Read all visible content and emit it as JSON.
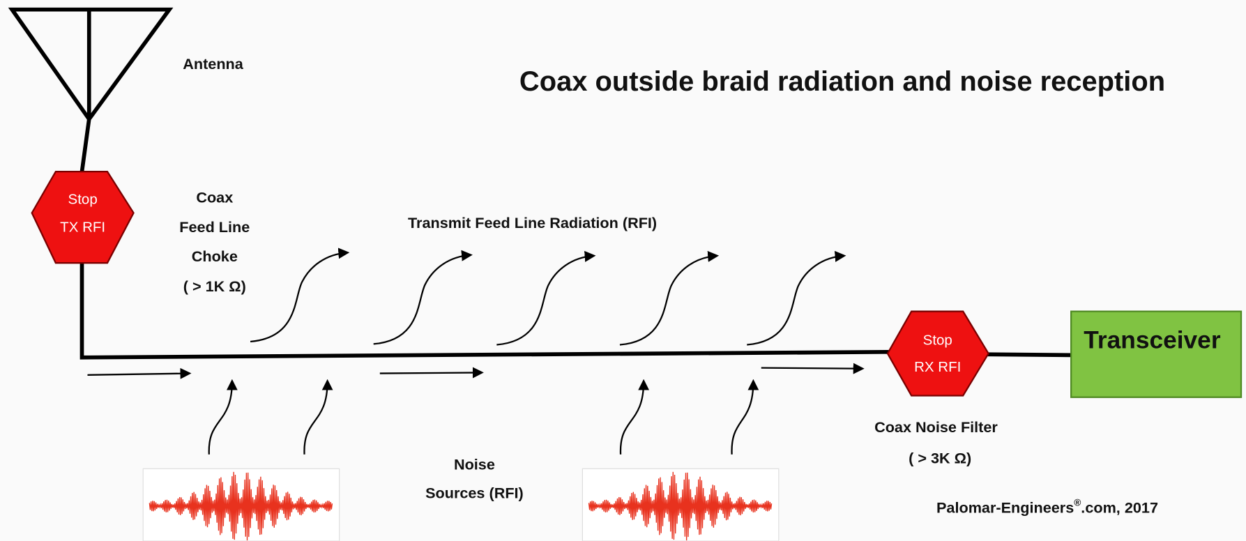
{
  "title": "Coax outside braid radiation and noise reception",
  "antenna": {
    "label": "Antenna"
  },
  "tx_choke": {
    "sign": [
      "Stop",
      "TX RFI"
    ],
    "label": [
      "Coax",
      "Feed Line",
      "Choke",
      "( > 1K Ω)"
    ]
  },
  "radiation_label": "Transmit Feed Line Radiation (RFI)",
  "noise_sources": {
    "label": [
      "Noise",
      "Sources (RFI)"
    ]
  },
  "rx_filter": {
    "sign": [
      "Stop",
      "RX RFI"
    ],
    "label": [
      "Coax Noise Filter",
      "( > 3K Ω)"
    ]
  },
  "transceiver": {
    "label": "Transceiver"
  },
  "credit": {
    "parts": [
      "Palomar-Engineers",
      "®",
      ".com, 2017"
    ]
  }
}
